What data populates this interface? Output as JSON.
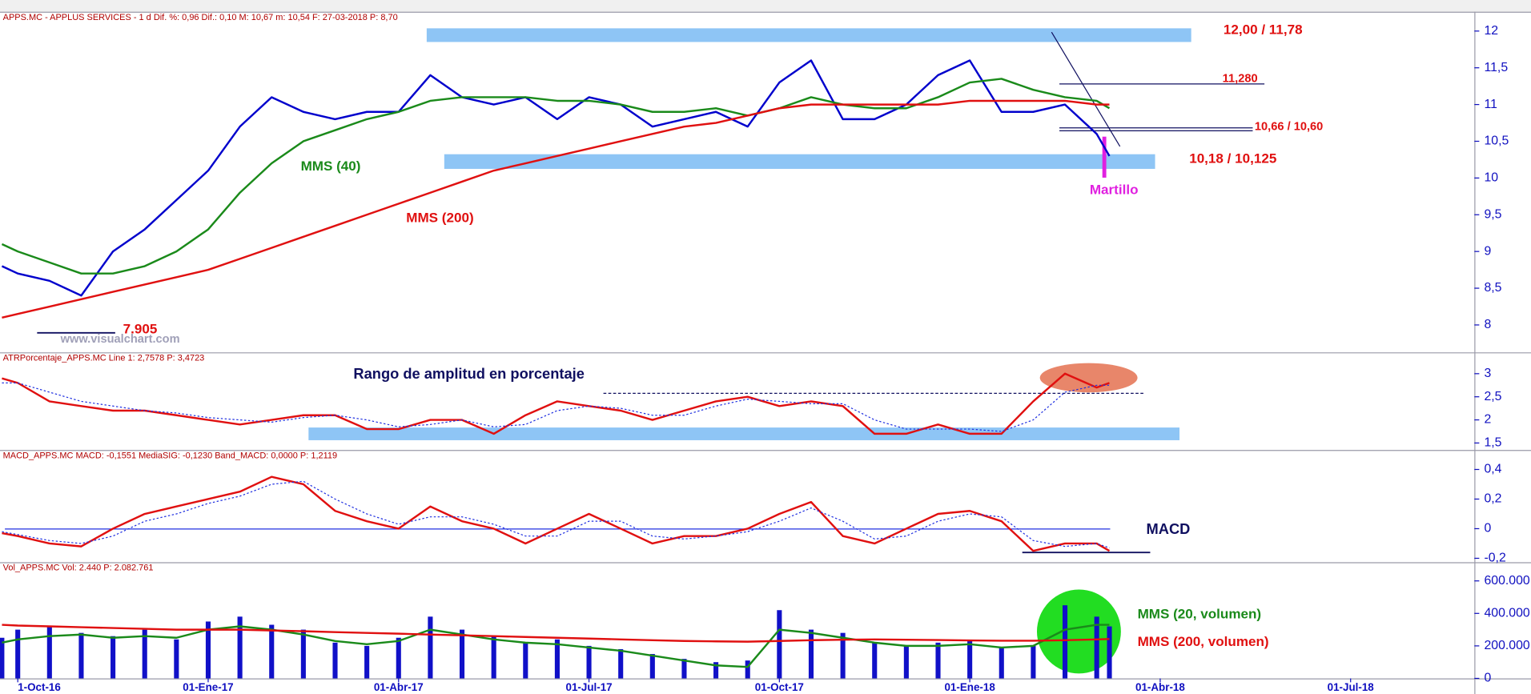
{
  "chart_data": [
    {
      "type": "line",
      "title": "APPS.MC - APPLUS SERVICES - 1 d Dif. %: 0,96 Dif.: 0,10 M: 10,67 m: 10,54 F: 27-03-2018 P: 8,70",
      "x": [
        -0.25,
        0,
        0.5,
        1,
        1.5,
        2,
        2.5,
        3,
        3.5,
        4,
        4.5,
        5,
        5.5,
        6,
        6.5,
        7,
        7.5,
        8,
        8.5,
        9,
        9.5,
        10,
        10.5,
        11,
        11.5,
        12,
        12.5,
        13,
        13.5,
        14,
        14.5,
        15,
        15.5,
        16,
        16.5,
        17,
        17.2
      ],
      "series": [
        {
          "color": "#0000cc",
          "values": [
            8.8,
            8.7,
            8.6,
            8.4,
            9.0,
            9.3,
            9.7,
            10.1,
            10.7,
            11.1,
            10.9,
            10.8,
            10.9,
            10.9,
            11.4,
            11.1,
            11.0,
            11.1,
            10.8,
            11.1,
            11.0,
            10.7,
            10.8,
            10.9,
            10.7,
            11.3,
            11.6,
            10.8,
            10.8,
            11.0,
            11.4,
            11.6,
            10.9,
            10.9,
            11.0,
            10.6,
            10.3
          ]
        },
        {
          "name": "MMS (40)",
          "color": "#1a8a1a",
          "values": [
            9.1,
            9.0,
            8.85,
            8.7,
            8.7,
            8.8,
            9.0,
            9.3,
            9.8,
            10.2,
            10.5,
            10.65,
            10.8,
            10.9,
            11.05,
            11.1,
            11.1,
            11.1,
            11.05,
            11.05,
            11.0,
            10.9,
            10.9,
            10.95,
            10.85,
            10.95,
            11.1,
            11.0,
            10.95,
            10.95,
            11.1,
            11.3,
            11.35,
            11.2,
            11.1,
            11.05,
            10.95
          ]
        },
        {
          "name": "MMS (200)",
          "color": "#e01010",
          "values": [
            8.1,
            8.15,
            8.25,
            8.35,
            8.45,
            8.55,
            8.65,
            8.75,
            8.9,
            9.05,
            9.2,
            9.35,
            9.5,
            9.65,
            9.8,
            9.95,
            10.1,
            10.2,
            10.3,
            10.4,
            10.5,
            10.6,
            10.7,
            10.75,
            10.85,
            10.95,
            11.0,
            11.0,
            11.0,
            11.0,
            11.0,
            11.05,
            11.05,
            11.05,
            11.05,
            11.0,
            11.0
          ]
        }
      ],
      "xlim": [
        -0.28,
        22.95
      ],
      "ylim": [
        7.64,
        12.25
      ],
      "yticks": [
        8,
        {
          "value": 8.5,
          "label": "8,5"
        },
        9,
        {
          "value": 9.5,
          "label": "9,5"
        },
        10,
        {
          "value": 10.5,
          "label": "10,5"
        },
        11,
        {
          "value": 11.5,
          "label": "11,5"
        },
        12
      ],
      "annotations": [
        {
          "text": "12,00 / 11,78",
          "color": "#e01010"
        },
        {
          "text": "11,280",
          "color": "#e01010"
        },
        {
          "text": "10,66 / 10,60",
          "color": "#e01010"
        },
        {
          "text": "10,18 / 10,125",
          "color": "#e01010"
        },
        {
          "text": "Martillo",
          "color": "#e020e0"
        },
        {
          "text": "7.905",
          "color": "#e01010"
        },
        {
          "text": "www.visualchart.com",
          "color": "#a0a0b8"
        }
      ]
    },
    {
      "type": "line",
      "title": "ATRPorcentaje_APPS.MC Line 1: 2,7578 P: 3,4723",
      "x": [
        -0.25,
        0,
        0.5,
        1,
        1.5,
        2,
        2.5,
        3,
        3.5,
        4,
        4.5,
        5,
        5.5,
        6,
        6.5,
        7,
        7.5,
        8,
        8.5,
        9,
        9.5,
        10,
        10.5,
        11,
        11.5,
        12,
        12.5,
        13,
        13.5,
        14,
        14.5,
        15,
        15.5,
        16,
        16.5,
        17,
        17.2
      ],
      "series": [
        {
          "color": "#e01010",
          "values": [
            2.9,
            2.8,
            2.4,
            2.3,
            2.2,
            2.2,
            2.1,
            2.0,
            1.9,
            2.0,
            2.1,
            2.1,
            1.8,
            1.8,
            2.0,
            2.0,
            1.7,
            2.1,
            2.4,
            2.3,
            2.2,
            2.0,
            2.2,
            2.4,
            2.5,
            2.3,
            2.4,
            2.3,
            1.7,
            1.7,
            1.9,
            1.7,
            1.7,
            2.4,
            3.0,
            2.7,
            2.8
          ]
        },
        {
          "color": "#2030e0",
          "style": "dotted",
          "values": [
            2.8,
            2.8,
            2.6,
            2.4,
            2.3,
            2.2,
            2.15,
            2.05,
            2.0,
            1.95,
            2.05,
            2.1,
            2.0,
            1.85,
            1.9,
            2.0,
            1.85,
            1.9,
            2.2,
            2.3,
            2.25,
            2.1,
            2.1,
            2.3,
            2.45,
            2.4,
            2.35,
            2.35,
            2.0,
            1.8,
            1.8,
            1.8,
            1.75,
            2.0,
            2.6,
            2.75,
            2.75
          ]
        }
      ],
      "xlim": [
        -0.28,
        22.95
      ],
      "ylim": [
        1.37,
        3.44
      ],
      "yticks": [
        {
          "value": 1.5,
          "label": "1,5"
        },
        2,
        {
          "value": 2.5,
          "label": "2,5"
        },
        3
      ],
      "annotations": [
        {
          "text": "Rango de amplitud en porcentaje",
          "color": "#101060"
        }
      ]
    },
    {
      "type": "line",
      "title": "MACD_APPS.MC MACD: -0,1551 MediaSIG: -0,1230 Band_MACD: 0,0000 P: 1,2119",
      "x": [
        -0.25,
        0,
        0.5,
        1,
        1.5,
        2,
        2.5,
        3,
        3.5,
        4,
        4.5,
        5,
        5.5,
        6,
        6.5,
        7,
        7.5,
        8,
        8.5,
        9,
        9.5,
        10,
        10.5,
        11,
        11.5,
        12,
        12.5,
        13,
        13.5,
        14,
        14.5,
        15,
        15.5,
        16,
        16.5,
        17,
        17.2
      ],
      "series": [
        {
          "color": "#e01010",
          "values": [
            -0.03,
            -0.05,
            -0.1,
            -0.12,
            0.0,
            0.1,
            0.15,
            0.2,
            0.25,
            0.35,
            0.3,
            0.12,
            0.05,
            0.0,
            0.15,
            0.05,
            0.0,
            -0.1,
            0.0,
            0.1,
            0.0,
            -0.1,
            -0.05,
            -0.05,
            0.0,
            0.1,
            0.18,
            -0.05,
            -0.1,
            0.0,
            0.1,
            0.12,
            0.05,
            -0.15,
            -0.1,
            -0.1,
            -0.15
          ]
        },
        {
          "color": "#2030e0",
          "style": "dotted",
          "values": [
            -0.02,
            -0.04,
            -0.08,
            -0.1,
            -0.05,
            0.05,
            0.1,
            0.17,
            0.22,
            0.3,
            0.32,
            0.2,
            0.1,
            0.03,
            0.08,
            0.08,
            0.03,
            -0.05,
            -0.05,
            0.05,
            0.05,
            -0.05,
            -0.07,
            -0.05,
            -0.02,
            0.05,
            0.14,
            0.05,
            -0.07,
            -0.05,
            0.05,
            0.1,
            0.08,
            -0.08,
            -0.12,
            -0.1,
            -0.13
          ]
        }
      ],
      "xlim": [
        -0.28,
        22.95
      ],
      "ylim": [
        -0.22,
        0.525
      ],
      "yticks": [
        {
          "value": -0.2,
          "label": "-0,2"
        },
        0,
        {
          "value": 0.2,
          "label": "0,2"
        },
        {
          "value": 0.4,
          "label": "0,4"
        }
      ],
      "annotations": [
        {
          "text": "MACD",
          "color": "#101060"
        }
      ]
    },
    {
      "type": "bar",
      "title": "Vol_APPS.MC Vol: 2.440 P: 2.082.761",
      "x": [
        -0.25,
        0,
        0.5,
        1,
        1.5,
        2,
        2.5,
        3,
        3.5,
        4,
        4.5,
        5,
        5.5,
        6,
        6.5,
        7,
        7.5,
        8,
        8.5,
        9,
        9.5,
        10,
        10.5,
        11,
        11.5,
        12,
        12.5,
        13,
        13.5,
        14,
        14.5,
        15,
        15.5,
        16,
        16.5,
        17,
        17.2
      ],
      "series": [
        {
          "type": "bar",
          "color": "#1010c8",
          "values": [
            250000,
            300000,
            320000,
            280000,
            260000,
            300000,
            240000,
            350000,
            380000,
            330000,
            300000,
            220000,
            200000,
            250000,
            380000,
            300000,
            260000,
            220000,
            240000,
            200000,
            180000,
            150000,
            120000,
            100000,
            110000,
            420000,
            300000,
            280000,
            220000,
            200000,
            220000,
            230000,
            190000,
            200000,
            450000,
            380000,
            320000
          ]
        },
        {
          "type": "line",
          "name": "MMS (20, volumen)",
          "color": "#1a8a1a",
          "values": [
            220000,
            240000,
            260000,
            270000,
            250000,
            260000,
            250000,
            300000,
            320000,
            300000,
            270000,
            230000,
            210000,
            230000,
            300000,
            270000,
            240000,
            220000,
            210000,
            190000,
            170000,
            140000,
            110000,
            80000,
            70000,
            300000,
            280000,
            250000,
            220000,
            200000,
            200000,
            210000,
            190000,
            200000,
            300000,
            330000,
            330000
          ]
        },
        {
          "type": "line",
          "name": "MMS (200, volumen)",
          "color": "#e01010",
          "values": [
            330000,
            325000,
            320000,
            315000,
            310000,
            305000,
            300000,
            300000,
            300000,
            295000,
            290000,
            285000,
            280000,
            275000,
            270000,
            265000,
            260000,
            255000,
            250000,
            245000,
            240000,
            235000,
            230000,
            228000,
            226000,
            230000,
            235000,
            238000,
            240000,
            238000,
            236000,
            234000,
            232000,
            232000,
            235000,
            240000,
            242000
          ]
        }
      ],
      "xlim": [
        -0.28,
        22.95
      ],
      "ylim": [
        0,
        709000
      ],
      "yticks": [
        0,
        {
          "value": 200000,
          "label": "200.000"
        },
        {
          "value": 400000,
          "label": "400.000"
        },
        {
          "value": 600000,
          "label": "600.000"
        }
      ],
      "xticks": [
        {
          "value": 0,
          "label": "1-Oct-16"
        },
        {
          "value": 3,
          "label": "01-Ene-17"
        },
        {
          "value": 6,
          "label": "01-Abr-17"
        },
        {
          "value": 9,
          "label": "01-Jul-17"
        },
        {
          "value": 12,
          "label": "01-Oct-17"
        },
        {
          "value": 15,
          "label": "01-Ene-18"
        },
        {
          "value": 18,
          "label": "01-Abr-18"
        },
        {
          "value": 21,
          "label": "01-Jul-18"
        }
      ]
    }
  ]
}
